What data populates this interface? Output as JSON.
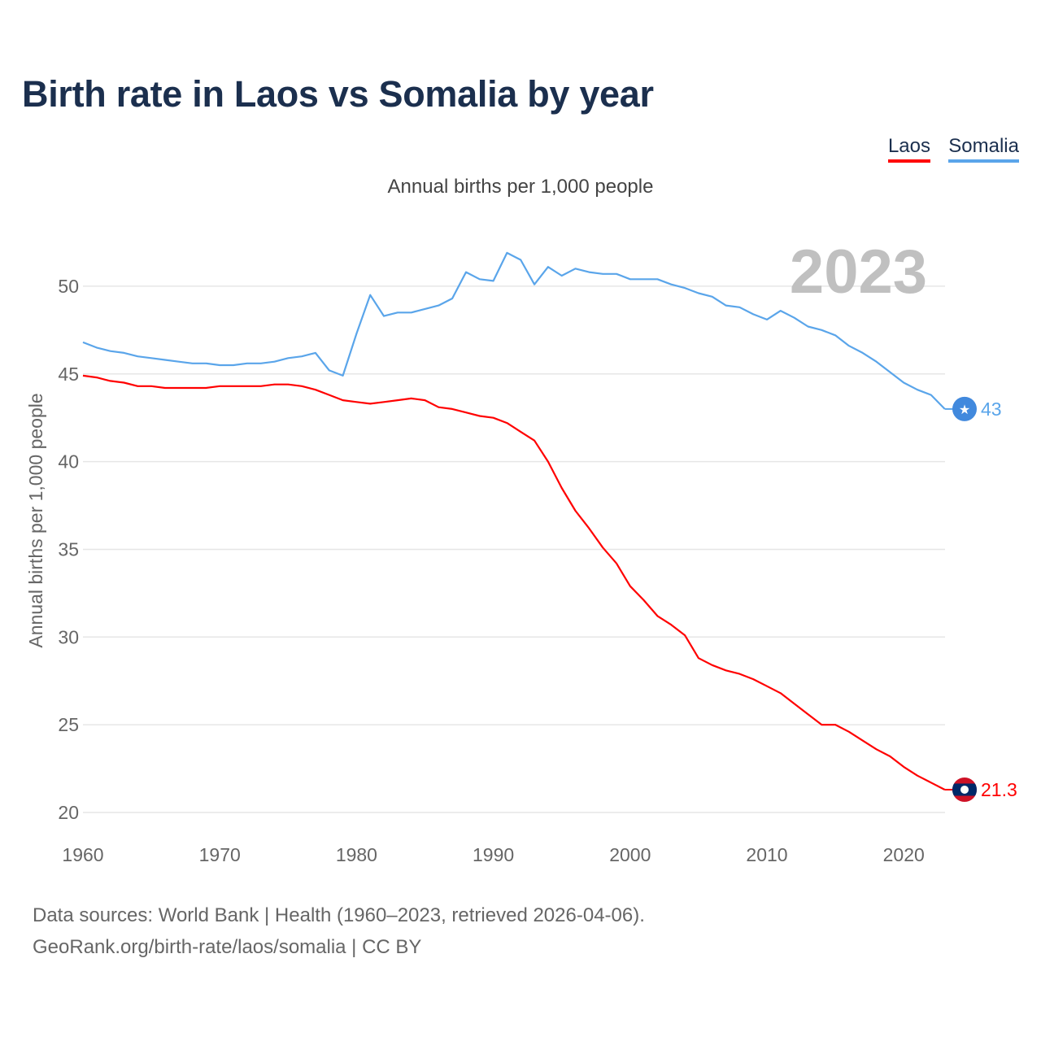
{
  "title": "Birth rate in Laos vs Somalia by year",
  "legend": [
    {
      "label": "Laos",
      "color": "#ff0000"
    },
    {
      "label": "Somalia",
      "color": "#5aa5ea"
    }
  ],
  "subtitle": "Annual births per 1,000 people",
  "footer": {
    "line1": "Data sources: World Bank | Health (1960–2023, retrieved 2026-04-06).",
    "line2": "GeoRank.org/birth-rate/laos/somalia | CC BY"
  },
  "chart_data": {
    "type": "line",
    "title": "Birth rate in Laos vs Somalia by year",
    "ylabel": "Annual births per 1,000 people",
    "xlabel": "",
    "year_label": "2023",
    "xlim": [
      1960,
      2023
    ],
    "ylim": [
      20,
      52
    ],
    "x_ticks": [
      "1960",
      "1970",
      "1980",
      "1990",
      "2000",
      "2010",
      "2020"
    ],
    "y_ticks": [
      "20",
      "25",
      "30",
      "35",
      "40",
      "45",
      "50"
    ],
    "grid": true,
    "legend_position": "top-right",
    "x": [
      1960,
      1961,
      1962,
      1963,
      1964,
      1965,
      1966,
      1967,
      1968,
      1969,
      1970,
      1971,
      1972,
      1973,
      1974,
      1975,
      1976,
      1977,
      1978,
      1979,
      1980,
      1981,
      1982,
      1983,
      1984,
      1985,
      1986,
      1987,
      1988,
      1989,
      1990,
      1991,
      1992,
      1993,
      1994,
      1995,
      1996,
      1997,
      1998,
      1999,
      2000,
      2001,
      2002,
      2003,
      2004,
      2005,
      2006,
      2007,
      2008,
      2009,
      2010,
      2011,
      2012,
      2013,
      2014,
      2015,
      2016,
      2017,
      2018,
      2019,
      2020,
      2021,
      2022,
      2023
    ],
    "series": [
      {
        "name": "Laos",
        "color": "#ff0000",
        "end_label": "21.3",
        "values": [
          44.9,
          44.8,
          44.6,
          44.5,
          44.3,
          44.3,
          44.2,
          44.2,
          44.2,
          44.2,
          44.3,
          44.3,
          44.3,
          44.3,
          44.4,
          44.4,
          44.3,
          44.1,
          43.8,
          43.5,
          43.4,
          43.3,
          43.4,
          43.5,
          43.6,
          43.5,
          43.1,
          43.0,
          42.8,
          42.6,
          42.5,
          42.2,
          41.7,
          41.2,
          40.0,
          38.5,
          37.2,
          36.2,
          35.1,
          34.2,
          32.9,
          32.1,
          31.2,
          30.7,
          30.1,
          28.8,
          28.4,
          28.1,
          27.9,
          27.6,
          27.2,
          26.8,
          26.2,
          25.6,
          25.0,
          25.0,
          24.6,
          24.1,
          23.6,
          23.2,
          22.6,
          22.1,
          21.7,
          21.3
        ]
      },
      {
        "name": "Somalia",
        "color": "#5aa5ea",
        "end_label": "43",
        "values": [
          46.8,
          46.5,
          46.3,
          46.2,
          46.0,
          45.9,
          45.8,
          45.7,
          45.6,
          45.6,
          45.5,
          45.5,
          45.6,
          45.6,
          45.7,
          45.9,
          46.0,
          46.2,
          45.2,
          44.9,
          47.3,
          49.5,
          48.3,
          48.5,
          48.5,
          48.7,
          48.9,
          49.3,
          50.8,
          50.4,
          50.3,
          51.9,
          51.5,
          50.1,
          51.1,
          50.6,
          51.0,
          50.8,
          50.7,
          50.7,
          50.4,
          50.4,
          50.4,
          50.1,
          49.9,
          49.6,
          49.4,
          48.9,
          48.8,
          48.4,
          48.1,
          48.6,
          48.2,
          47.7,
          47.5,
          47.2,
          46.6,
          46.2,
          45.7,
          45.1,
          44.5,
          44.1,
          43.8,
          43.0
        ]
      }
    ]
  }
}
